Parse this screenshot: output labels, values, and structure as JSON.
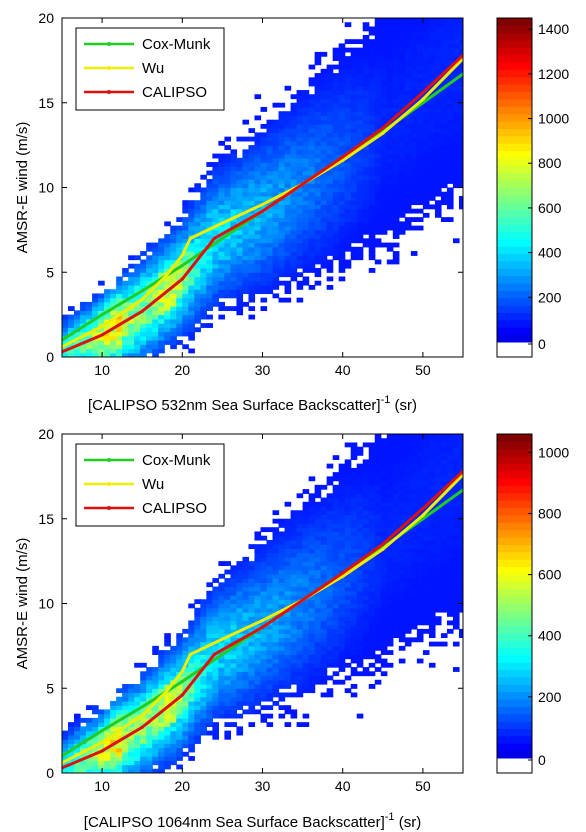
{
  "chart_data": [
    {
      "type": "heatmap",
      "title": "",
      "xlabel": "[CALIPSO 532nm Sea Surface Backscatter]",
      "xlabel_sup": "-1",
      "xlabel_unit": " (sr)",
      "ylabel": "AMSR-E wind (m/s)",
      "xlim": [
        5,
        55
      ],
      "ylim": [
        0,
        20
      ],
      "xticks": [
        "10",
        "20",
        "30",
        "40",
        "50"
      ],
      "yticks": [
        "0",
        "5",
        "10",
        "15",
        "20"
      ],
      "grid": false,
      "legend_position": "top-left",
      "colorbar": {
        "min": 0,
        "max": 1450,
        "ticks": [
          "0",
          "200",
          "400",
          "600",
          "800",
          "1000",
          "1200",
          "1400"
        ]
      },
      "series": [
        {
          "name": "Cox-Munk",
          "color": "#22cc22",
          "x": [
            5,
            10,
            15,
            20,
            25,
            30,
            35,
            40,
            45,
            50,
            55
          ],
          "y": [
            1.0,
            2.5,
            3.9,
            5.4,
            7.0,
            8.6,
            10.2,
            11.8,
            13.3,
            15.0,
            16.7
          ]
        },
        {
          "name": "Wu",
          "color": "#eeee00",
          "x": [
            5,
            10,
            15,
            18,
            20,
            21,
            25,
            30,
            35,
            40,
            45,
            50,
            55
          ],
          "y": [
            0.6,
            1.8,
            3.4,
            4.8,
            6.0,
            7.0,
            7.9,
            9.0,
            10.2,
            11.6,
            13.2,
            15.2,
            17.6
          ]
        },
        {
          "name": "CALIPSO",
          "color": "#dd1111",
          "x": [
            5,
            10,
            15,
            20,
            24,
            30,
            35,
            40,
            45,
            50,
            55
          ],
          "y": [
            0.3,
            1.3,
            2.7,
            4.6,
            7.0,
            8.6,
            10.2,
            11.8,
            13.5,
            15.6,
            17.8
          ]
        }
      ]
    },
    {
      "type": "heatmap",
      "title": "",
      "xlabel": "[CALIPSO 1064nm Sea Surface Backscatter]",
      "xlabel_sup": "-1",
      "xlabel_unit": " (sr)",
      "ylabel": "AMSR-E wind (m/s)",
      "xlim": [
        5,
        55
      ],
      "ylim": [
        0,
        20
      ],
      "xticks": [
        "10",
        "20",
        "30",
        "40",
        "50"
      ],
      "yticks": [
        "0",
        "5",
        "10",
        "15",
        "20"
      ],
      "grid": false,
      "legend_position": "top-left",
      "colorbar": {
        "min": 0,
        "max": 1060,
        "ticks": [
          "0",
          "200",
          "400",
          "600",
          "800",
          "1000"
        ]
      },
      "series": [
        {
          "name": "Cox-Munk",
          "color": "#22cc22",
          "x": [
            5,
            10,
            15,
            20,
            25,
            30,
            35,
            40,
            45,
            50,
            55
          ],
          "y": [
            1.0,
            2.5,
            3.9,
            5.4,
            7.0,
            8.6,
            10.2,
            11.8,
            13.3,
            15.0,
            16.7
          ]
        },
        {
          "name": "Wu",
          "color": "#eeee00",
          "x": [
            5,
            10,
            15,
            18,
            20,
            21,
            25,
            30,
            35,
            40,
            45,
            50,
            55
          ],
          "y": [
            0.6,
            1.8,
            3.4,
            4.8,
            6.0,
            7.0,
            7.9,
            9.0,
            10.2,
            11.6,
            13.2,
            15.2,
            17.6
          ]
        },
        {
          "name": "CALIPSO",
          "color": "#dd1111",
          "x": [
            5,
            10,
            15,
            20,
            24,
            30,
            35,
            40,
            45,
            50,
            55
          ],
          "y": [
            0.3,
            1.3,
            2.7,
            4.6,
            7.0,
            8.6,
            10.2,
            11.8,
            13.5,
            15.6,
            17.8
          ]
        }
      ]
    }
  ]
}
